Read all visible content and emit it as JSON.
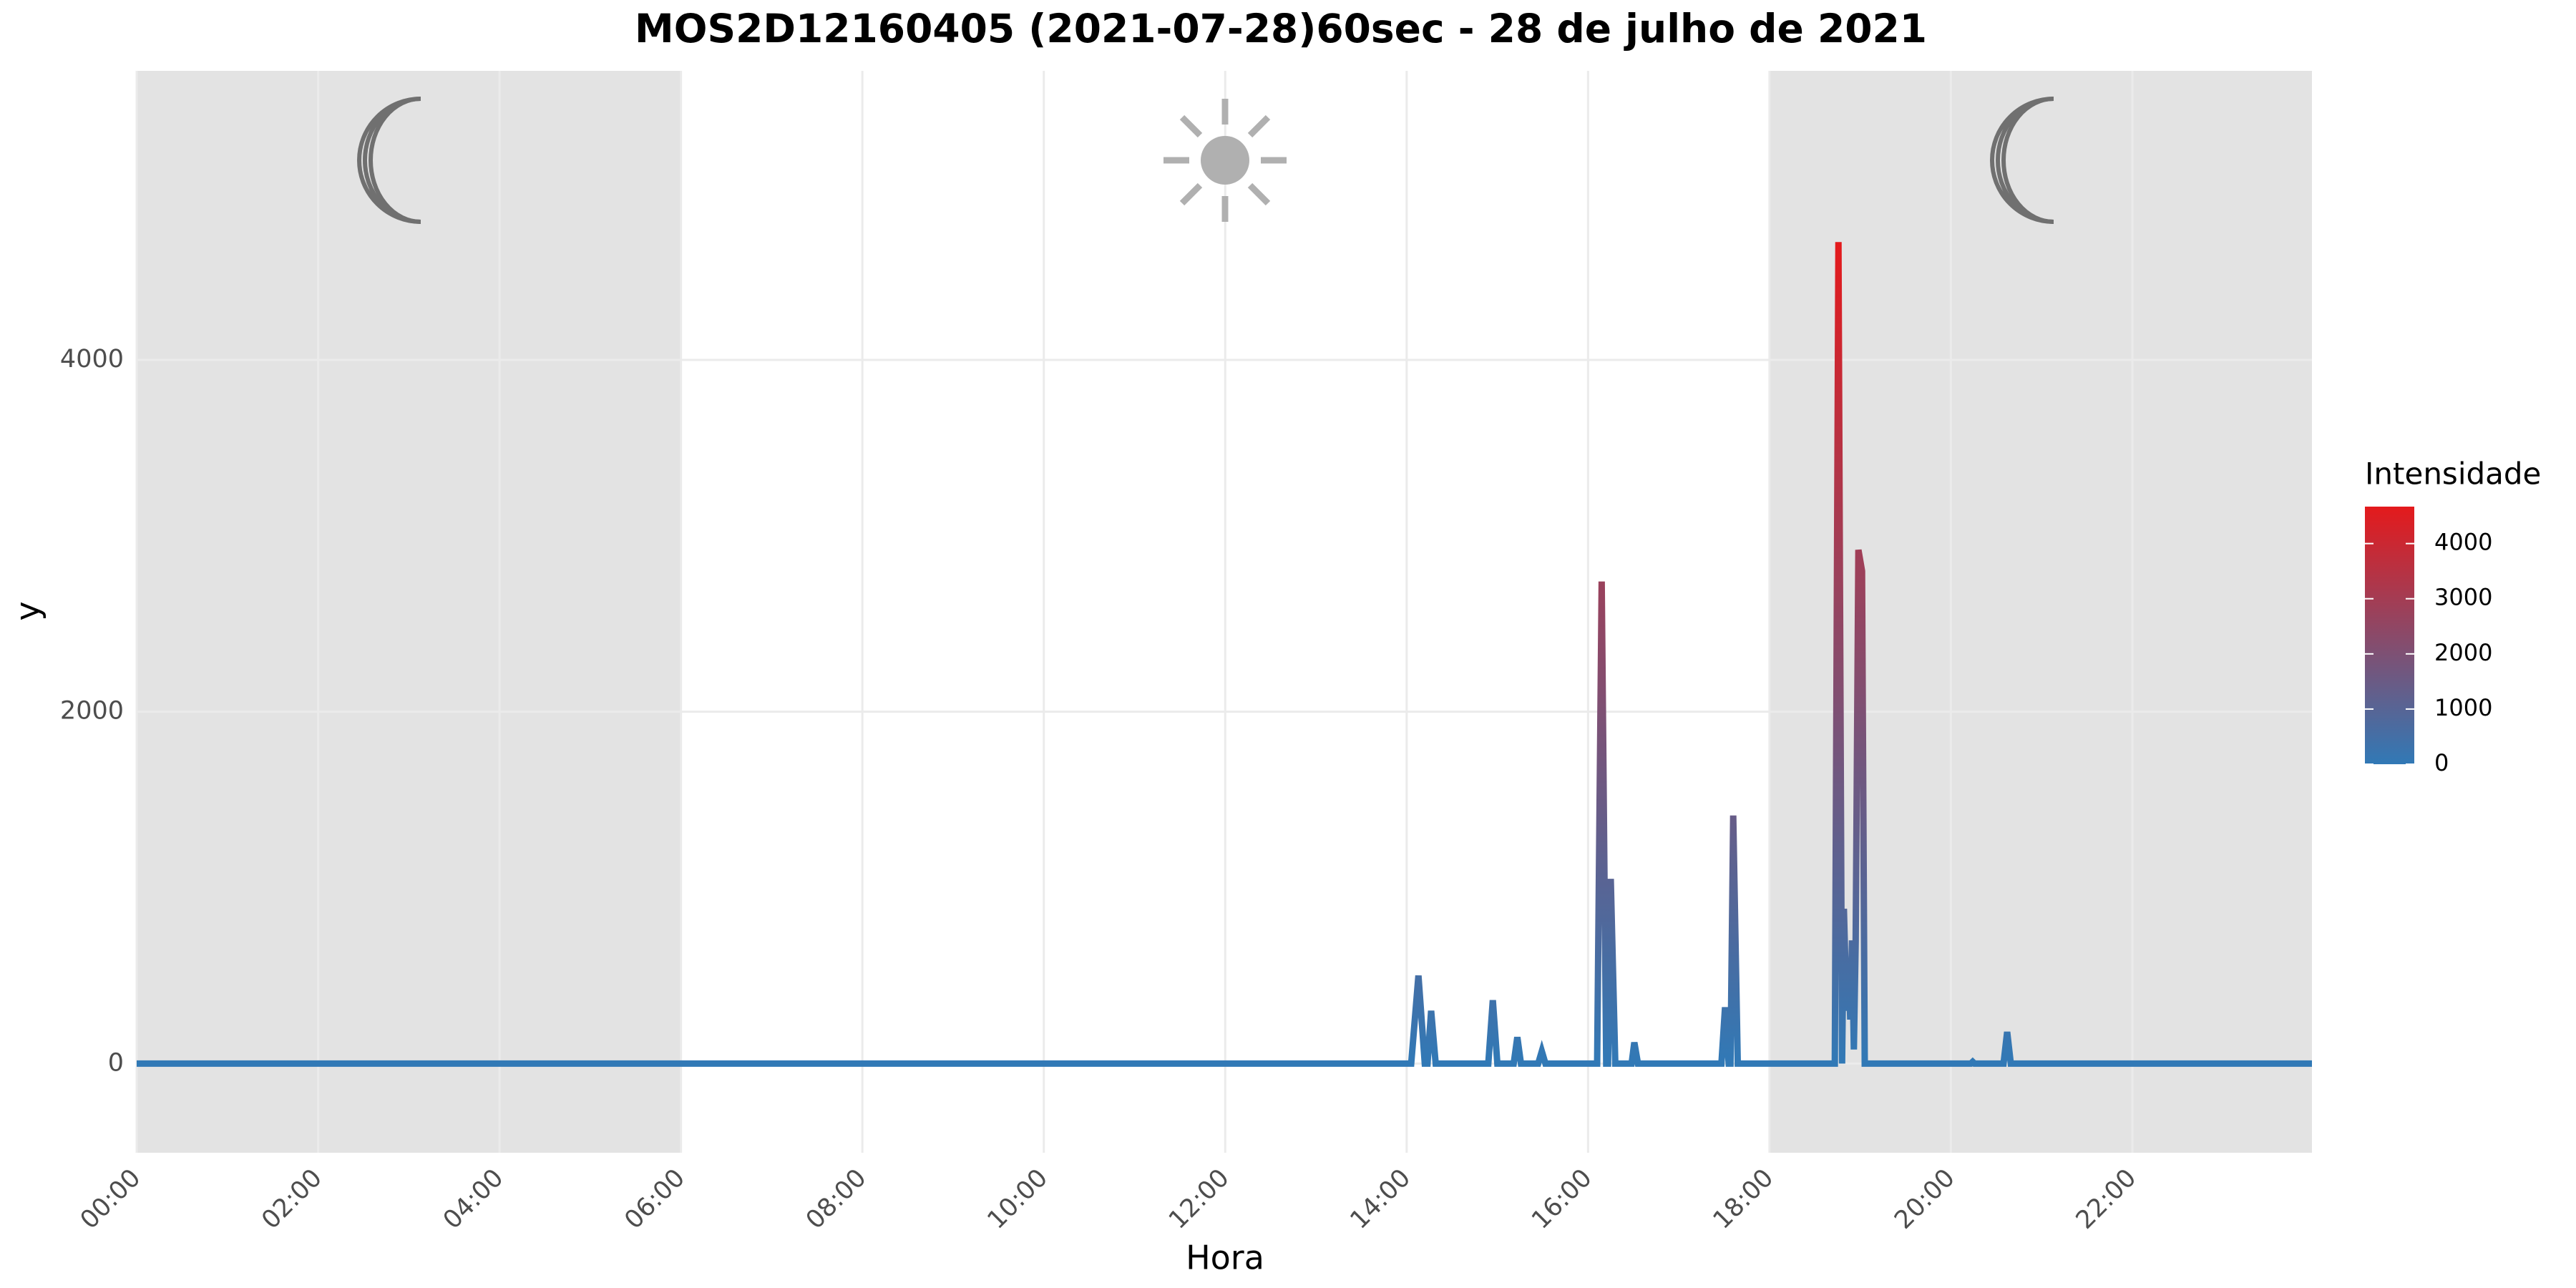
{
  "chart_data": {
    "type": "line",
    "title": "MOS2D12160405 (2021-07-28)60sec - 28 de julho de 2021",
    "x_label": "Hora",
    "y_label": "y",
    "x": [
      0,
      14.05,
      14.13,
      14.2,
      14.23,
      14.27,
      14.32,
      14.9,
      14.95,
      15.0,
      15.18,
      15.22,
      15.26,
      15.45,
      15.49,
      15.53,
      16.1,
      16.15,
      16.2,
      16.22,
      16.25,
      16.3,
      16.48,
      16.51,
      16.55,
      17.47,
      17.51,
      17.55,
      17.57,
      17.6,
      17.65,
      18.72,
      18.76,
      18.8,
      18.82,
      18.85,
      18.87,
      18.89,
      18.91,
      18.93,
      18.95,
      18.98,
      19.02,
      19.05,
      20.22,
      20.24,
      20.26,
      20.58,
      20.62,
      20.66,
      23.98
    ],
    "values": [
      0,
      0,
      500,
      0,
      0,
      300,
      0,
      0,
      360,
      0,
      0,
      150,
      0,
      0,
      70,
      0,
      0,
      2740,
      0,
      0,
      1050,
      0,
      0,
      120,
      0,
      0,
      320,
      0,
      0,
      1410,
      0,
      0,
      4670,
      0,
      880,
      300,
      600,
      250,
      700,
      80,
      700,
      2920,
      2800,
      0,
      0,
      10,
      0,
      0,
      180,
      0,
      0
    ],
    "xlim": [
      0,
      23.98
    ],
    "ylim": [
      -507,
      5643
    ],
    "xticks": [
      {
        "value": 0,
        "label": "00:00"
      },
      {
        "value": 2,
        "label": "02:00"
      },
      {
        "value": 4,
        "label": "04:00"
      },
      {
        "value": 6,
        "label": "06:00"
      },
      {
        "value": 8,
        "label": "08:00"
      },
      {
        "value": 10,
        "label": "10:00"
      },
      {
        "value": 12,
        "label": "12:00"
      },
      {
        "value": 14,
        "label": "14:00"
      },
      {
        "value": 16,
        "label": "16:00"
      },
      {
        "value": 18,
        "label": "18:00"
      },
      {
        "value": 20,
        "label": "20:00"
      },
      {
        "value": 22,
        "label": "22:00"
      }
    ],
    "yticks": [
      0,
      2000,
      4000
    ],
    "grid": true,
    "shaded_periods": [
      [
        0,
        6
      ],
      [
        18,
        23.98
      ]
    ],
    "shade_color": "#e0e0e0",
    "color_scale": {
      "title": "Intensidade",
      "low": "#3179b6",
      "high": "#e41a1c",
      "limits": [
        0,
        4670
      ],
      "ticks": [
        0,
        1000,
        2000,
        3000,
        4000
      ]
    },
    "legend_position": "right"
  }
}
